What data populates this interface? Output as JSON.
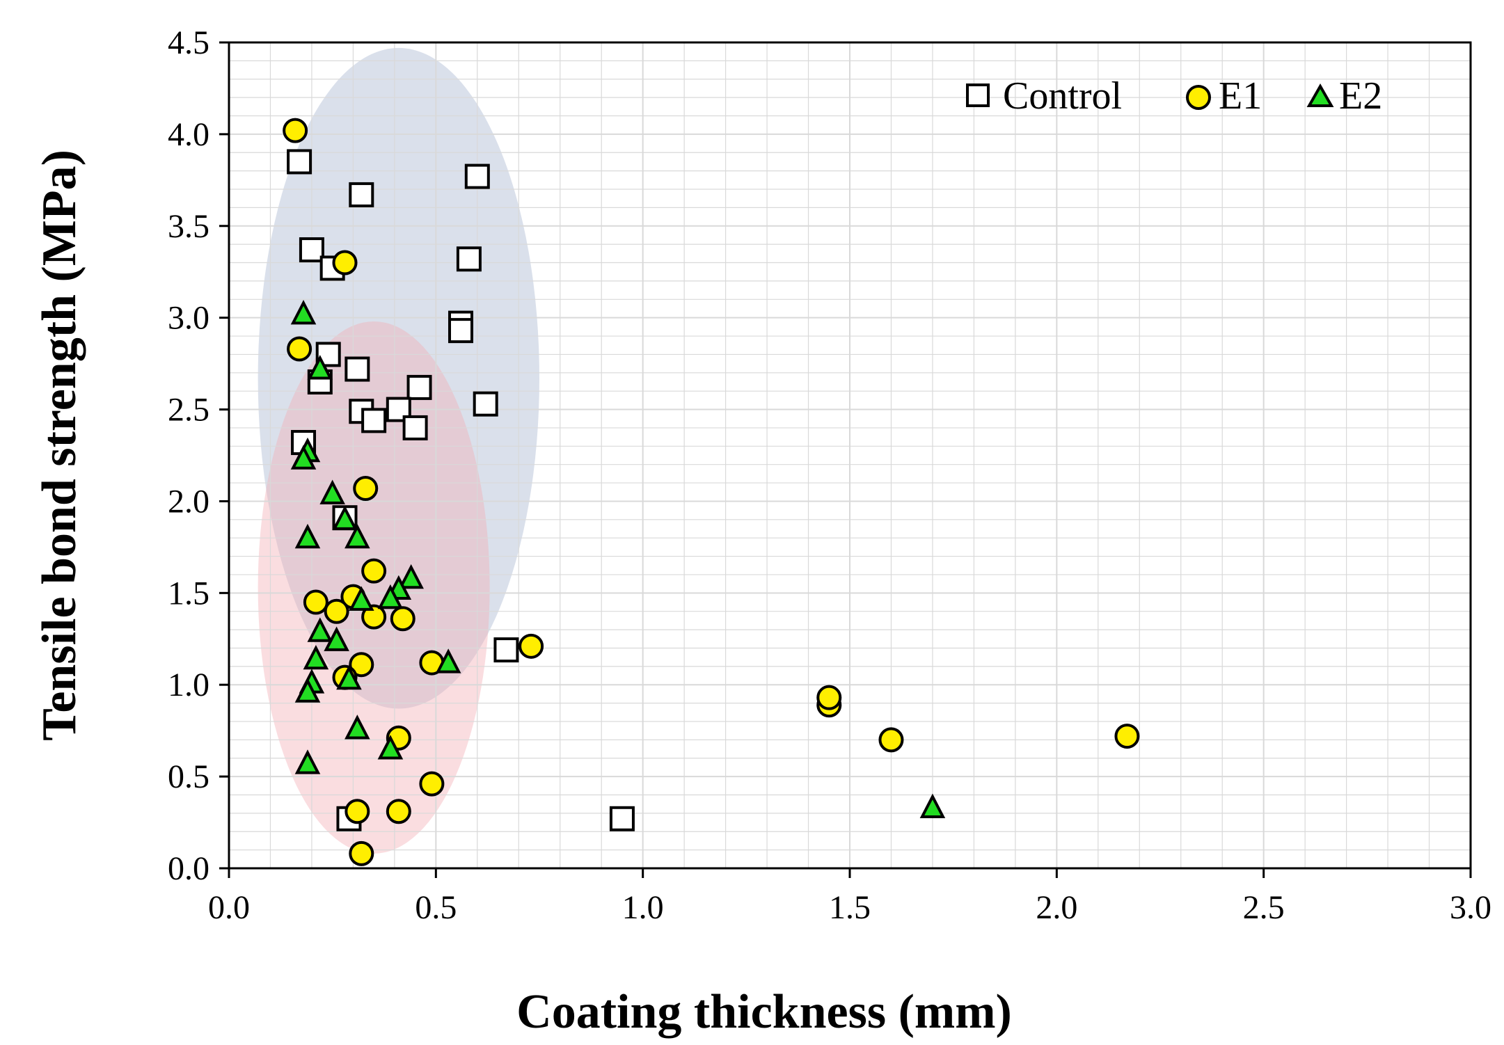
{
  "chart_data": {
    "type": "scatter",
    "title": "",
    "xlabel": "Coating thickness (mm)",
    "ylabel": "Tensile bond strength (MPa)",
    "xlim": [
      0,
      3.0
    ],
    "ylim": [
      0,
      4.5
    ],
    "xticks": [
      "0.0",
      "0.5",
      "1.0",
      "1.5",
      "2.0",
      "2.5",
      "3.0"
    ],
    "yticks": [
      "0.0",
      "0.5",
      "1.0",
      "1.5",
      "2.0",
      "2.5",
      "3.0",
      "3.5",
      "4.0",
      "4.5"
    ],
    "grid": true,
    "legend_position": "top-right",
    "colors": {
      "control_fill": "#ffffff",
      "e1_fill": "#ffee00",
      "e2_fill": "#22dd22",
      "marker_edge": "#000000",
      "blue_region": "#a7b5cf",
      "red_region": "#f4aeb4",
      "grid": "#d9d9d9"
    },
    "regions": [
      {
        "name": "blue ellipse",
        "cx": 0.41,
        "cy": 2.67,
        "rx": 0.34,
        "ry": 1.8
      },
      {
        "name": "red ellipse",
        "cx": 0.35,
        "cy": 1.53,
        "rx": 0.28,
        "ry": 1.45
      }
    ],
    "series": [
      {
        "name": "Control",
        "marker": "square",
        "points": [
          [
            0.17,
            3.85
          ],
          [
            0.32,
            3.67
          ],
          [
            0.6,
            3.77
          ],
          [
            0.2,
            3.37
          ],
          [
            0.58,
            3.32
          ],
          [
            0.25,
            3.27
          ],
          [
            0.56,
            2.97
          ],
          [
            0.56,
            2.93
          ],
          [
            0.24,
            2.8
          ],
          [
            0.31,
            2.72
          ],
          [
            0.22,
            2.65
          ],
          [
            0.46,
            2.62
          ],
          [
            0.62,
            2.53
          ],
          [
            0.41,
            2.5
          ],
          [
            0.32,
            2.49
          ],
          [
            0.35,
            2.44
          ],
          [
            0.45,
            2.4
          ],
          [
            0.18,
            2.32
          ],
          [
            0.28,
            1.91
          ],
          [
            0.67,
            1.19
          ],
          [
            0.29,
            0.27
          ],
          [
            0.95,
            0.27
          ]
        ]
      },
      {
        "name": "E1",
        "marker": "circle",
        "points": [
          [
            0.16,
            4.02
          ],
          [
            0.28,
            3.3
          ],
          [
            0.17,
            2.83
          ],
          [
            0.33,
            2.07
          ],
          [
            0.35,
            1.62
          ],
          [
            0.3,
            1.48
          ],
          [
            0.21,
            1.45
          ],
          [
            0.26,
            1.4
          ],
          [
            0.35,
            1.37
          ],
          [
            0.42,
            1.36
          ],
          [
            0.73,
            1.21
          ],
          [
            0.49,
            1.12
          ],
          [
            0.32,
            1.11
          ],
          [
            0.28,
            1.04
          ],
          [
            1.45,
            0.89
          ],
          [
            1.45,
            0.93
          ],
          [
            0.41,
            0.71
          ],
          [
            1.6,
            0.7
          ],
          [
            2.17,
            0.72
          ],
          [
            0.49,
            0.46
          ],
          [
            0.31,
            0.31
          ],
          [
            0.41,
            0.31
          ],
          [
            0.32,
            0.08
          ]
        ]
      },
      {
        "name": "E2",
        "marker": "triangle",
        "points": [
          [
            0.18,
            3.02
          ],
          [
            0.22,
            2.72
          ],
          [
            0.19,
            2.27
          ],
          [
            0.18,
            2.23
          ],
          [
            0.25,
            2.04
          ],
          [
            0.28,
            1.9
          ],
          [
            0.19,
            1.8
          ],
          [
            0.31,
            1.8
          ],
          [
            0.44,
            1.58
          ],
          [
            0.41,
            1.52
          ],
          [
            0.39,
            1.47
          ],
          [
            0.32,
            1.46
          ],
          [
            0.22,
            1.29
          ],
          [
            0.26,
            1.24
          ],
          [
            0.21,
            1.14
          ],
          [
            0.53,
            1.12
          ],
          [
            0.29,
            1.03
          ],
          [
            0.2,
            1.01
          ],
          [
            0.19,
            0.96
          ],
          [
            0.31,
            0.76
          ],
          [
            0.39,
            0.65
          ],
          [
            0.19,
            0.57
          ],
          [
            1.7,
            0.33
          ]
        ]
      }
    ]
  }
}
